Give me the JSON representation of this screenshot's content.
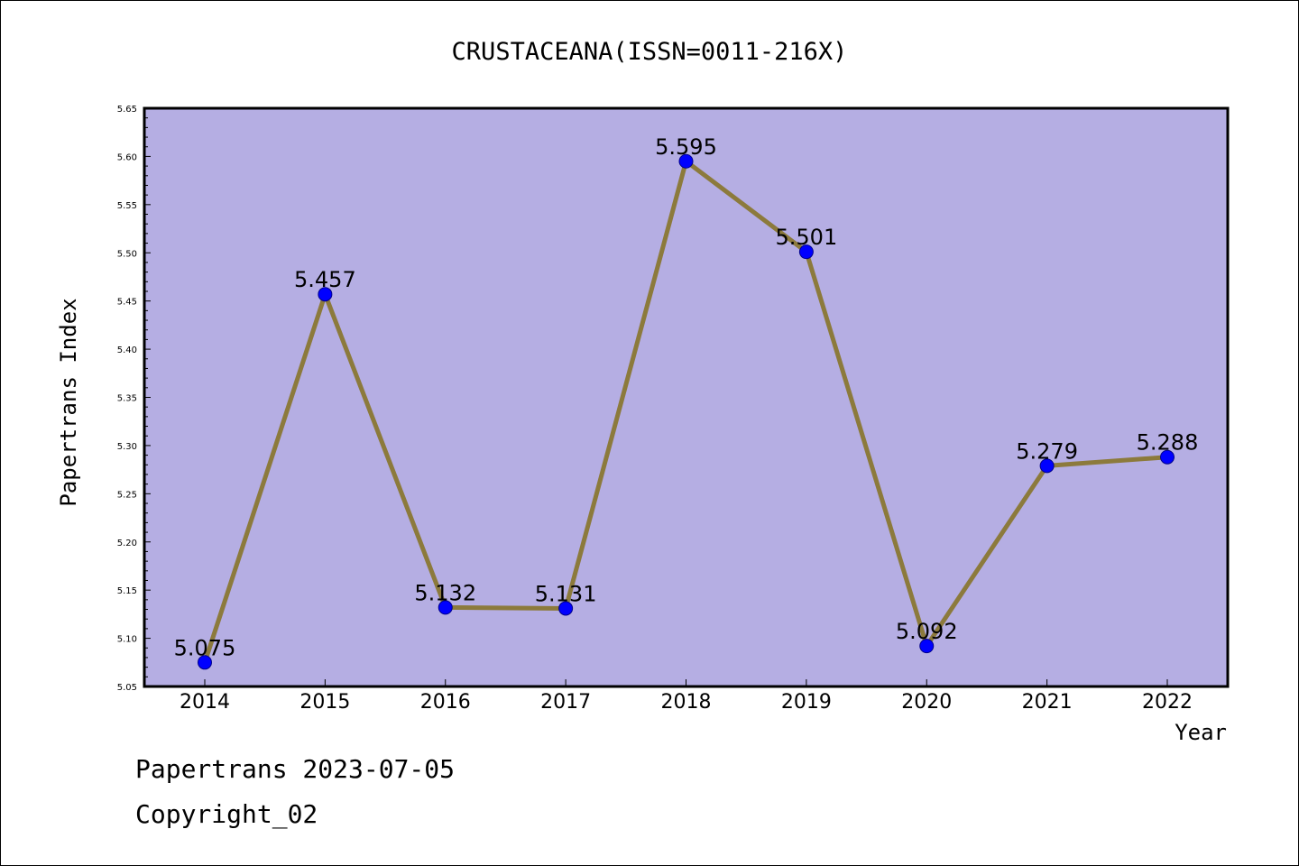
{
  "chart_data": {
    "type": "line",
    "title": "CRUSTACEANA(ISSN=0011-216X)",
    "xlabel": "Year",
    "ylabel": "Papertrans Index",
    "categories": [
      "2014",
      "2015",
      "2016",
      "2017",
      "2018",
      "2019",
      "2020",
      "2021",
      "2022"
    ],
    "series": [
      {
        "values": [
          5.075,
          5.457,
          5.132,
          5.131,
          5.595,
          5.501,
          5.092,
          5.279,
          5.288
        ],
        "data_labels": [
          "5.075",
          "5.457",
          "5.132",
          "5.131",
          "5.595",
          "5.501",
          "5.092",
          "5.279",
          "5.288"
        ]
      }
    ],
    "ylim": [
      5.05,
      5.65
    ],
    "yticks": [
      "5.05",
      "5.10",
      "5.15",
      "5.20",
      "5.25",
      "5.30",
      "5.35",
      "5.40",
      "5.45",
      "5.50",
      "5.55",
      "5.60",
      "5.65"
    ],
    "grid": false,
    "legend": "none",
    "colors": {
      "plot_background": "#b5aee3",
      "line": "#8c7a3c",
      "marker": "#0000ff",
      "marker_edge": "#00008b"
    }
  },
  "footer": {
    "line1": "Papertrans 2023-07-05",
    "line2": "Copyright_02"
  }
}
